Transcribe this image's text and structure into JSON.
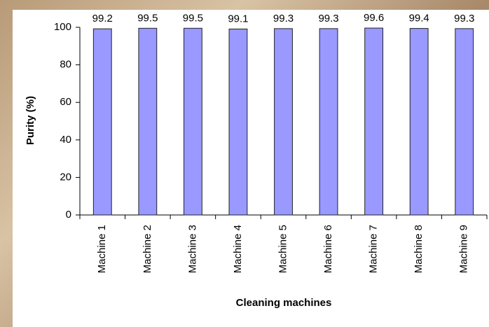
{
  "chart_data": {
    "type": "bar",
    "x_label": "Cleaning machines",
    "y_label": "Purity (%)",
    "categories": [
      "Machine 1",
      "Machine 2",
      "Machine 3",
      "Machine 4",
      "Machine 5",
      "Machine 6",
      "Machine 7",
      "Machine 8",
      "Machine 9"
    ],
    "values": [
      99.2,
      99.5,
      99.5,
      99.1,
      99.3,
      99.3,
      99.6,
      99.4,
      99.3
    ],
    "color": "#9999ff",
    "ylim": [
      0,
      100
    ],
    "yticks": [
      0,
      20,
      40,
      60,
      80,
      100
    ],
    "grid": false
  }
}
